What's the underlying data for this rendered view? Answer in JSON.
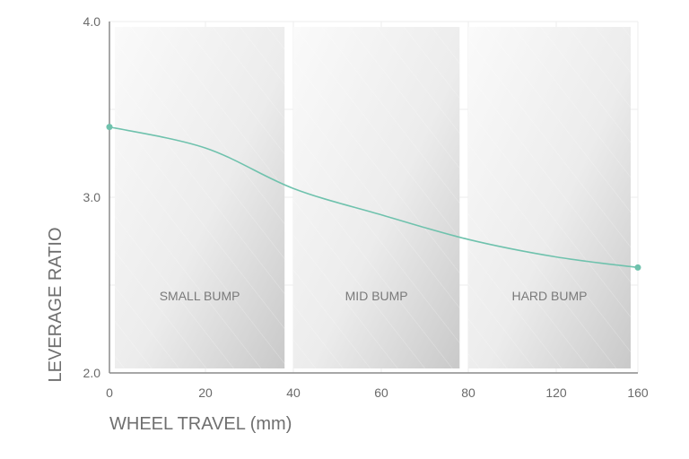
{
  "chart_data": {
    "type": "line",
    "title": "",
    "xlabel": "WHEEL TRAVEL (mm)",
    "ylabel": "LEVERAGE RATIO",
    "x_ticks": [
      "0",
      "20",
      "40",
      "60",
      "80",
      "120",
      "160"
    ],
    "y_ticks": [
      "2.0",
      "3.0",
      "4.0"
    ],
    "ylim": [
      2.0,
      4.0
    ],
    "grid": true,
    "series": [
      {
        "color": "#6fc2ad",
        "points": [
          {
            "x": 0,
            "y": 3.4
          },
          {
            "x": 20,
            "y": 3.28
          },
          {
            "x": 40,
            "y": 3.05
          },
          {
            "x": 60,
            "y": 2.9
          },
          {
            "x": 80,
            "y": 2.76
          },
          {
            "x": 120,
            "y": 2.66
          },
          {
            "x": 160,
            "y": 2.6
          }
        ],
        "endpoint_markers": true
      }
    ],
    "regions": [
      {
        "label": "SMALL BUMP",
        "from": 0,
        "to": 38
      },
      {
        "label": "MID BUMP",
        "from": 40,
        "to": 78
      },
      {
        "label": "HARD BUMP",
        "from": 80,
        "to": 160
      }
    ]
  }
}
